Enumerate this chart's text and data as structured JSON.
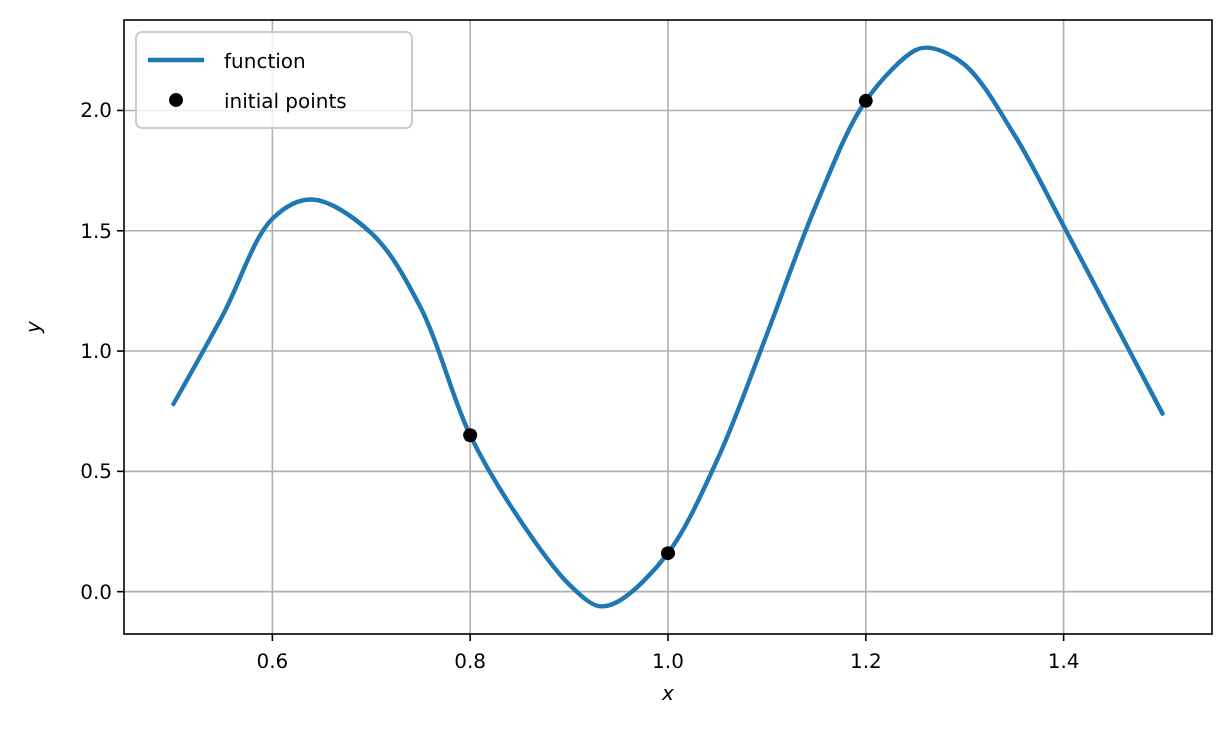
{
  "chart_data": {
    "type": "line",
    "xlabel": "x",
    "ylabel": "y",
    "xlim": [
      0.45,
      1.55
    ],
    "ylim": [
      -0.176,
      2.376
    ],
    "xticks": [
      {
        "value": 0.6,
        "label": "0.6"
      },
      {
        "value": 0.8,
        "label": "0.8"
      },
      {
        "value": 1.0,
        "label": "1.0"
      },
      {
        "value": 1.2,
        "label": "1.2"
      },
      {
        "value": 1.4,
        "label": "1.4"
      }
    ],
    "yticks": [
      {
        "value": 0,
        "label": "0.0"
      },
      {
        "value": 0.5,
        "label": "0.5"
      },
      {
        "value": 1.0,
        "label": "1.0"
      },
      {
        "value": 1.5,
        "label": "1.5"
      },
      {
        "value": 2.0,
        "label": "2.0"
      }
    ],
    "grid": true,
    "legend": "top left",
    "series": [
      {
        "name": "function",
        "color": "#1f77b4",
        "marker": "none",
        "line_style": "solid",
        "x": [
          0.5,
          0.55,
          0.6,
          0.64,
          0.7,
          0.75,
          0.8,
          0.85,
          0.9,
          0.93,
          0.95,
          1.0,
          1.05,
          1.1,
          1.15,
          1.2,
          1.25,
          1.265,
          1.3,
          1.35,
          1.4,
          1.45,
          1.5
        ],
        "values": [
          0.78,
          1.15,
          1.55,
          1.63,
          1.49,
          1.18,
          0.65,
          0.3,
          0.03,
          -0.06,
          -0.04,
          0.16,
          0.55,
          1.07,
          1.61,
          2.04,
          2.25,
          2.26,
          2.19,
          1.9,
          1.52,
          1.13,
          0.74
        ]
      },
      {
        "name": "initial points",
        "type": "scatter",
        "color": "#000000",
        "marker": "circle",
        "x": [
          0.8,
          1.0,
          1.2
        ],
        "values": [
          0.65,
          0.16,
          2.04
        ]
      }
    ]
  }
}
